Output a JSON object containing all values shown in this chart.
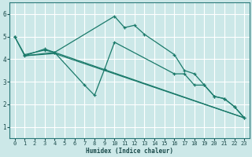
{
  "xlabel": "Humidex (Indice chaleur)",
  "background_color": "#cce8e8",
  "grid_color": "#ffffff",
  "line_color": "#1a7a6a",
  "spine_color": "#2a7a7a",
  "xlim": [
    -0.5,
    23.5
  ],
  "ylim": [
    0.5,
    6.5
  ],
  "xticks": [
    0,
    1,
    2,
    3,
    4,
    5,
    6,
    7,
    8,
    9,
    10,
    11,
    12,
    13,
    14,
    15,
    16,
    17,
    18,
    19,
    20,
    21,
    22,
    23
  ],
  "yticks": [
    1,
    2,
    3,
    4,
    5,
    6
  ],
  "series": [
    {
      "x": [
        0,
        1,
        3,
        4,
        10,
        11,
        12,
        13,
        16,
        17,
        18,
        19,
        20,
        21,
        22,
        23
      ],
      "y": [
        5.0,
        4.2,
        4.4,
        4.3,
        5.9,
        5.4,
        5.5,
        5.1,
        4.2,
        3.5,
        3.35,
        2.85,
        2.35,
        2.25,
        1.9,
        1.4
      ],
      "style": "line_marker"
    },
    {
      "x": [
        0,
        1,
        3,
        4,
        7,
        8,
        9,
        10,
        16,
        17,
        18,
        19,
        20,
        21,
        22,
        23
      ],
      "y": [
        5.0,
        4.15,
        4.45,
        4.3,
        2.85,
        2.4,
        3.55,
        4.75,
        3.35,
        3.35,
        2.85,
        2.85,
        2.35,
        2.25,
        1.9,
        1.4
      ],
      "style": "line_marker"
    },
    {
      "x": [
        1,
        4,
        23
      ],
      "y": [
        4.15,
        4.3,
        1.4
      ],
      "style": "line_only"
    },
    {
      "x": [
        1,
        4,
        23
      ],
      "y": [
        4.15,
        4.25,
        1.4
      ],
      "style": "line_only"
    }
  ]
}
